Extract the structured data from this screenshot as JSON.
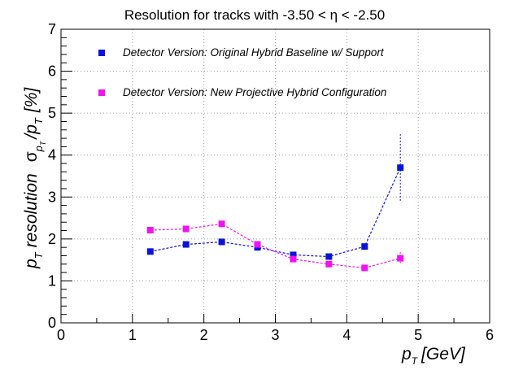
{
  "chart_data": {
    "type": "scatter",
    "title": "Resolution for tracks with -3.50 < η < -2.50",
    "xlabel": "p",
    "xlabel_sub": "T",
    "xlabel_unit": "[GeV]",
    "ylabel": {
      "p": "p",
      "sub_t": "T",
      "resolution": "resolution",
      "sigma": "σ",
      "sigma_sub": "p",
      "sigma_subsub": "T",
      "slash_p": "/p",
      "slash_sub": "T",
      "unit": "[%]"
    },
    "xlim": [
      0,
      6
    ],
    "ylim": [
      0,
      7
    ],
    "xticks": [
      "0",
      "1",
      "2",
      "3",
      "4",
      "5",
      "6"
    ],
    "yticks": [
      "0",
      "1",
      "2",
      "3",
      "4",
      "5",
      "6",
      "7"
    ],
    "grid": true,
    "legend_position": "top-left",
    "series": [
      {
        "name": "Detector Version: Original Hybrid Baseline w/ Support",
        "color": "#0a14d8",
        "x": [
          1.25,
          1.75,
          2.25,
          2.75,
          3.25,
          3.75,
          4.25,
          4.75
        ],
        "y": [
          1.7,
          1.87,
          1.93,
          1.8,
          1.62,
          1.58,
          1.82,
          3.7
        ],
        "yerr": [
          0.03,
          0.03,
          0.03,
          0.03,
          0.03,
          0.03,
          0.05,
          0.8
        ]
      },
      {
        "name": "Detector Version: New Projective Hybrid Configuration",
        "color": "#f012f0",
        "x": [
          1.25,
          1.75,
          2.25,
          2.75,
          3.25,
          3.75,
          4.25,
          4.75
        ],
        "y": [
          2.21,
          2.24,
          2.36,
          1.87,
          1.52,
          1.4,
          1.31,
          1.54
        ],
        "yerr": [
          0.03,
          0.03,
          0.03,
          0.03,
          0.03,
          0.03,
          0.05,
          0.15
        ]
      }
    ]
  }
}
